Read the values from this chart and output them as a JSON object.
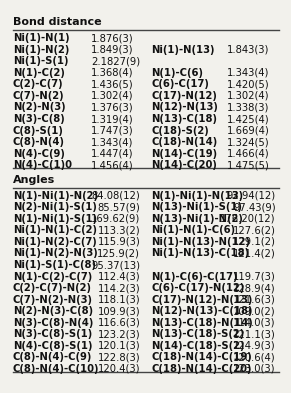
{
  "title": "Bond distance",
  "title2": "Angles",
  "bond_rows": [
    [
      "Ni(1)-N(1)",
      "1.876(3)",
      "",
      ""
    ],
    [
      "Ni(1)-N(2)",
      "1.849(3)",
      "Ni(1)-N(13)",
      "1.843(3)"
    ],
    [
      "Ni(1)-S(1)",
      "2.1827(9)",
      "",
      ""
    ],
    [
      "N(1)-C(2)",
      "1.368(4)",
      "N(1)-C(6)",
      "1.343(4)"
    ],
    [
      "C(2)-C(7)",
      "1.436(5)",
      "C(6)-C(17)",
      "1.420(5)"
    ],
    [
      "C(7)-N(2)",
      "1.302(4)",
      "C(17)-N(12)",
      "1.302(4)"
    ],
    [
      "N(2)-N(3)",
      "1.376(3)",
      "N(12)-N(13)",
      "1.338(3)"
    ],
    [
      "N(3)-C(8)",
      "1.319(4)",
      "N(13)-C(18)",
      "1.425(4)"
    ],
    [
      "C(8)-S(1)",
      "1.747(3)",
      "C(18)-S(2)",
      "1.669(4)"
    ],
    [
      "C(8)-N(4)",
      "1.343(4)",
      "C(18)-N(14)",
      "1.324(5)"
    ],
    [
      "N(4)-C(9)",
      "1.447(4)",
      "N(14)-C(19)",
      "1.466(4)"
    ],
    [
      "N(4)-C(1)0",
      "1.456(4)",
      "N(14)-C(20)",
      "1.475(5)"
    ]
  ],
  "angle_rows": [
    [
      "N(1)-Ni(1)-N(2)",
      "84.08(12)",
      "N(1)-Ni(1)-N(13)",
      "92.94(12)"
    ],
    [
      "N(2)-Ni(1)-S(1)",
      "85.57(9)",
      "N(13)-Ni(1)-S(1)",
      "97.43(9)"
    ],
    [
      "N(1)-Ni(1)-S(1)",
      "169.62(9)",
      "N(13)-Ni(1)-N(2)",
      "176.20(12)"
    ],
    [
      "Ni(1)-N(1)-C(2)",
      "113.3(2)",
      "Ni(1)-N(1)-C(6)",
      "127.6(2)"
    ],
    [
      "Ni(1)-N(2)-C(7)",
      "115.9(3)",
      "Ni(1)-N(13)-N(12)",
      "129.1(2)"
    ],
    [
      "Ni(1)-N(2)-N(3)",
      "125.9(2)",
      "Ni(1)-N(13)-C(18)",
      "121.4(2)"
    ],
    [
      "Ni(1)-S(1)-C(8)",
      "95.37(13)",
      "",
      ""
    ],
    [
      "N(1)-C(2)-C(7)",
      "112.4(3)",
      "N(1)-C(6)-C(17)",
      "119.7(3)"
    ],
    [
      "C(2)-C(7)-N(2)",
      "114.2(3)",
      "C(6)-C(17)-N(12)",
      "128.9(4)"
    ],
    [
      "C(7)-N(2)-N(3)",
      "118.1(3)",
      "C(17)-N(12)-N(13)",
      "121.6(3)"
    ],
    [
      "N(2)-N(3)-C(8)",
      "109.9(3)",
      "N(12)-N(13)-C(18)",
      "109.0(2)"
    ],
    [
      "N(3)-C(8)-N(4)",
      "116.6(3)",
      "N(13)-C(18)-N(14)",
      "114.0(3)"
    ],
    [
      "N(3)-C(8)-S(1)",
      "123.2(3)",
      "N(13)-C(18)-S(2)",
      "121.1(3)"
    ],
    [
      "N(4)-C(8)-S(1)",
      "120.1(3)",
      "N(14)-C(18)-S(2)",
      "124.9(3)"
    ],
    [
      "C(8)-N(4)-C(9)",
      "122.8(3)",
      "C(18)-N(14)-C(19)",
      "120.6(4)"
    ],
    [
      "C(8)-N(4)-C(10)",
      "120.4(3)",
      "C(18)-N(14)-C(20)",
      "123.0(3)"
    ]
  ],
  "bg_color": "#f2f1ec",
  "line_color": "#444444",
  "text_color": "#111111",
  "header_fontsize": 8.0,
  "data_fontsize": 7.2
}
